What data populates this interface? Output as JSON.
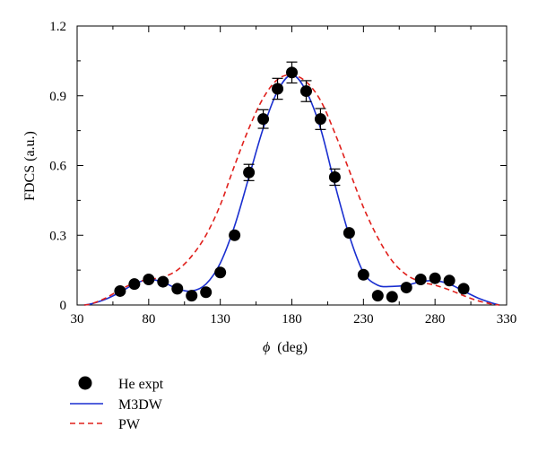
{
  "chart_data": {
    "type": "scatter",
    "xlabel_symbol": "ϕ",
    "xlabel_unit": "(deg)",
    "ylabel": "FDCS (a.u.)",
    "xlim": [
      30,
      330
    ],
    "ylim": [
      0,
      1.2
    ],
    "xticks": [
      "30",
      "80",
      "130",
      "180",
      "230",
      "280",
      "330"
    ],
    "yticks": [
      "0",
      "0.3",
      "0.6",
      "0.9",
      "1.2"
    ],
    "legend_position": "bottom-left below plot",
    "grid": false,
    "series": [
      {
        "name": "He expt",
        "kind": "points",
        "color": "#000000",
        "x": [
          60,
          70,
          80,
          90,
          100,
          110,
          120,
          130,
          140,
          150,
          160,
          170,
          180,
          190,
          200,
          210,
          220,
          230,
          240,
          250,
          260,
          270,
          280,
          290,
          300
        ],
        "y": [
          0.06,
          0.09,
          0.11,
          0.1,
          0.07,
          0.04,
          0.055,
          0.14,
          0.3,
          0.57,
          0.8,
          0.93,
          1.0,
          0.92,
          0.8,
          0.55,
          0.31,
          0.13,
          0.04,
          0.035,
          0.075,
          0.11,
          0.115,
          0.105,
          0.07
        ],
        "yerr": [
          0,
          0,
          0,
          0,
          0,
          0,
          0,
          0,
          0,
          0.035,
          0.04,
          0.045,
          0.045,
          0.045,
          0.045,
          0.035,
          0,
          0,
          0,
          0,
          0,
          0,
          0,
          0,
          0
        ]
      },
      {
        "name": "M3DW",
        "kind": "line",
        "color": "#1a2fd0",
        "dash": "solid",
        "x": [
          35,
          40,
          50,
          60,
          70,
          80,
          90,
          100,
          110,
          120,
          130,
          140,
          150,
          160,
          170,
          180,
          190,
          200,
          210,
          220,
          230,
          240,
          250,
          260,
          270,
          280,
          290,
          300,
          310,
          320,
          325
        ],
        "y": [
          0.0,
          0.005,
          0.025,
          0.055,
          0.09,
          0.11,
          0.098,
          0.07,
          0.06,
          0.09,
          0.18,
          0.34,
          0.55,
          0.76,
          0.92,
          0.99,
          0.92,
          0.76,
          0.52,
          0.3,
          0.14,
          0.085,
          0.08,
          0.085,
          0.1,
          0.105,
          0.09,
          0.06,
          0.03,
          0.008,
          0.0
        ]
      },
      {
        "name": "PW",
        "kind": "line",
        "color": "#e0201c",
        "dash": "dashed",
        "x": [
          35,
          40,
          50,
          60,
          70,
          80,
          90,
          100,
          110,
          120,
          130,
          140,
          150,
          160,
          170,
          180,
          190,
          200,
          210,
          220,
          230,
          240,
          250,
          260,
          270,
          280,
          290,
          300,
          310,
          320,
          325
        ],
        "y": [
          0.0,
          0.005,
          0.03,
          0.065,
          0.095,
          0.11,
          0.12,
          0.15,
          0.21,
          0.3,
          0.43,
          0.6,
          0.76,
          0.89,
          0.97,
          0.99,
          0.96,
          0.88,
          0.74,
          0.58,
          0.42,
          0.29,
          0.19,
          0.13,
          0.1,
          0.085,
          0.065,
          0.04,
          0.018,
          0.004,
          0.0
        ]
      }
    ]
  }
}
